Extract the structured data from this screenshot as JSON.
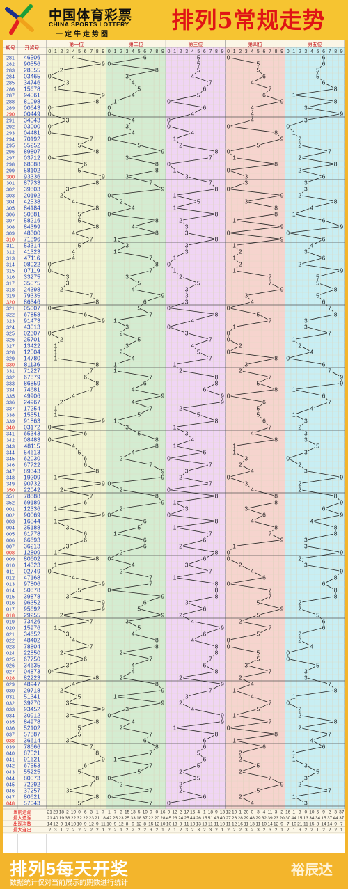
{
  "header": {
    "logo_cn": "中国体育彩票",
    "logo_en": "CHINA SPORTS LOTTERY",
    "slogan": "一定牛走势图",
    "title": "排列5常规走势"
  },
  "table": {
    "col_issue": "期号",
    "col_number": "开奖号",
    "position_labels": [
      "第一位",
      "第二位",
      "第三位",
      "第四位",
      "第五位"
    ],
    "digit_labels": [
      "0",
      "1",
      "2",
      "3",
      "4",
      "5",
      "6",
      "7",
      "8",
      "9"
    ],
    "stat_labels": [
      "当前遗漏",
      "最大遗漏",
      "出现次数",
      "最大连出"
    ],
    "stat_rows": [
      [
        "21",
        "28",
        "18",
        "2",
        "19",
        "0",
        "6",
        "3",
        "1",
        "7",
        "1",
        "7",
        "3",
        "15",
        "13",
        "5",
        "10",
        "0",
        "0",
        "16",
        "0",
        "12",
        "2",
        "17",
        "15",
        "4",
        "1",
        "18",
        "9",
        "13",
        "12",
        "10",
        "1",
        "20",
        "0",
        "3",
        "4",
        "11",
        "3",
        "2",
        "16",
        "1",
        "3",
        "0",
        "10",
        "5",
        "9",
        "2",
        "3",
        "37"
      ],
      [
        "21",
        "40",
        "19",
        "38",
        "22",
        "32",
        "22",
        "23",
        "21",
        "18",
        "42",
        "25",
        "23",
        "25",
        "33",
        "18",
        "37",
        "22",
        "20",
        "28",
        "45",
        "23",
        "24",
        "25",
        "44",
        "26",
        "15",
        "51",
        "43",
        "40",
        "27",
        "26",
        "28",
        "29",
        "48",
        "29",
        "32",
        "39",
        "23",
        "20",
        "30",
        "44",
        "15",
        "13",
        "34",
        "34",
        "15",
        "37",
        "44",
        "37"
      ],
      [
        "14",
        "12",
        "9",
        "14",
        "10",
        "10",
        "9",
        "12",
        "9",
        "11",
        "10",
        "9",
        "12",
        "8",
        "9",
        "12",
        "8",
        "15",
        "12",
        "10",
        "10",
        "13",
        "8",
        "11",
        "10",
        "13",
        "13",
        "11",
        "11",
        "10",
        "11",
        "12",
        "16",
        "11",
        "13",
        "11",
        "10",
        "14",
        "12",
        "9",
        "7",
        "10",
        "21",
        "11",
        "15",
        "8",
        "14",
        "14",
        "9",
        "7"
      ],
      [
        "2",
        "3",
        "1",
        "2",
        "2",
        "2",
        "2",
        "2",
        "2",
        "1",
        "2",
        "2",
        "1",
        "2",
        "2",
        "2",
        "2",
        "3",
        "2",
        "1",
        "2",
        "1",
        "2",
        "3",
        "2",
        "3",
        "2",
        "3",
        "2",
        "1",
        "2",
        "2",
        "2",
        "3",
        "2",
        "3",
        "2",
        "3",
        "2",
        "1",
        "2",
        "1",
        "3",
        "2",
        "2",
        "1",
        "2",
        "2",
        "2",
        "1"
      ]
    ]
  },
  "chart_data": {
    "type": "line",
    "title": "排列5常规走势",
    "x_label": "期号",
    "y_label": "开奖号",
    "series_names": [
      "第一位",
      "第二位",
      "第三位",
      "第四位",
      "第五位"
    ],
    "digit_range": [
      0,
      9
    ],
    "draws": [
      {
        "issue": "281",
        "number": "46506"
      },
      {
        "issue": "282",
        "number": "90556"
      },
      {
        "issue": "283",
        "number": "28555"
      },
      {
        "issue": "284",
        "number": "03465"
      },
      {
        "issue": "285",
        "number": "34746"
      },
      {
        "issue": "286",
        "number": "15678"
      },
      {
        "issue": "287",
        "number": "94561"
      },
      {
        "issue": "288",
        "number": "81098"
      },
      {
        "issue": "289",
        "number": "00643"
      },
      {
        "issue": "290",
        "number": "00449"
      },
      {
        "issue": "291",
        "number": "34043"
      },
      {
        "issue": "292",
        "number": "03000"
      },
      {
        "issue": "293",
        "number": "04481"
      },
      {
        "issue": "294",
        "number": "70192"
      },
      {
        "issue": "295",
        "number": "55252"
      },
      {
        "issue": "296",
        "number": "89807"
      },
      {
        "issue": "297",
        "number": "03712"
      },
      {
        "issue": "298",
        "number": "68088"
      },
      {
        "issue": "299",
        "number": "58102"
      },
      {
        "issue": "300",
        "number": "93336"
      },
      {
        "issue": "301",
        "number": "87733"
      },
      {
        "issue": "302",
        "number": "39803"
      },
      {
        "issue": "303",
        "number": "20192"
      },
      {
        "issue": "304",
        "number": "42538"
      },
      {
        "issue": "305",
        "number": "84184"
      },
      {
        "issue": "306",
        "number": "50881"
      },
      {
        "issue": "307",
        "number": "58216"
      },
      {
        "issue": "308",
        "number": "84399"
      },
      {
        "issue": "309",
        "number": "48300"
      },
      {
        "issue": "310",
        "number": "71896"
      },
      {
        "issue": "311",
        "number": "53314"
      },
      {
        "issue": "312",
        "number": "41323"
      },
      {
        "issue": "313",
        "number": "47116"
      },
      {
        "issue": "314",
        "number": "08022"
      },
      {
        "issue": "315",
        "number": "07119"
      },
      {
        "issue": "316",
        "number": "33275"
      },
      {
        "issue": "317",
        "number": "35575"
      },
      {
        "issue": "318",
        "number": "24398"
      },
      {
        "issue": "319",
        "number": "79335"
      },
      {
        "issue": "320",
        "number": "86346"
      },
      {
        "issue": "321",
        "number": "05007"
      },
      {
        "issue": "322",
        "number": "67858"
      },
      {
        "issue": "323",
        "number": "91473"
      },
      {
        "issue": "324",
        "number": "43013"
      },
      {
        "issue": "325",
        "number": "02307"
      },
      {
        "issue": "326",
        "number": "25701"
      },
      {
        "issue": "327",
        "number": "13422"
      },
      {
        "issue": "328",
        "number": "12504"
      },
      {
        "issue": "329",
        "number": "14780"
      },
      {
        "issue": "330",
        "number": "81136"
      },
      {
        "issue": "331",
        "number": "71227"
      },
      {
        "issue": "332",
        "number": "67879"
      },
      {
        "issue": "333",
        "number": "86859"
      },
      {
        "issue": "334",
        "number": "74681"
      },
      {
        "issue": "335",
        "number": "49906"
      },
      {
        "issue": "336",
        "number": "24967"
      },
      {
        "issue": "337",
        "number": "17254"
      },
      {
        "issue": "338",
        "number": "15551"
      },
      {
        "issue": "339",
        "number": "91863"
      },
      {
        "issue": "340",
        "number": "03172"
      },
      {
        "issue": "341",
        "number": "65343"
      },
      {
        "issue": "342",
        "number": "08483"
      },
      {
        "issue": "343",
        "number": "48115"
      },
      {
        "issue": "344",
        "number": "54613"
      },
      {
        "issue": "345",
        "number": "62030"
      },
      {
        "issue": "346",
        "number": "67722"
      },
      {
        "issue": "347",
        "number": "89343"
      },
      {
        "issue": "348",
        "number": "19209"
      },
      {
        "issue": "349",
        "number": "90732"
      },
      {
        "issue": "350",
        "number": "22042"
      },
      {
        "issue": "351",
        "number": "78888"
      },
      {
        "issue": "352",
        "number": "69189"
      },
      {
        "issue": "001",
        "number": "12336"
      },
      {
        "issue": "002",
        "number": "90069"
      },
      {
        "issue": "003",
        "number": "16844"
      },
      {
        "issue": "004",
        "number": "35188"
      },
      {
        "issue": "005",
        "number": "61778"
      },
      {
        "issue": "006",
        "number": "66693"
      },
      {
        "issue": "007",
        "number": "36213"
      },
      {
        "issue": "008",
        "number": "12809"
      },
      {
        "issue": "009",
        "number": "80602"
      },
      {
        "issue": "010",
        "number": "14323"
      },
      {
        "issue": "011",
        "number": "02749"
      },
      {
        "issue": "012",
        "number": "47168"
      },
      {
        "issue": "013",
        "number": "97806"
      },
      {
        "issue": "014",
        "number": "50878"
      },
      {
        "issue": "015",
        "number": "39878"
      },
      {
        "issue": "016",
        "number": "96352"
      },
      {
        "issue": "017",
        "number": "95692"
      },
      {
        "issue": "018",
        "number": "29255"
      },
      {
        "issue": "019",
        "number": "73426"
      },
      {
        "issue": "020",
        "number": "15976"
      },
      {
        "issue": "021",
        "number": "34652"
      },
      {
        "issue": "022",
        "number": "48402"
      },
      {
        "issue": "023",
        "number": "78804"
      },
      {
        "issue": "024",
        "number": "22850"
      },
      {
        "issue": "025",
        "number": "67750"
      },
      {
        "issue": "026",
        "number": "34635"
      },
      {
        "issue": "027",
        "number": "04873"
      },
      {
        "issue": "028",
        "number": "82223"
      },
      {
        "issue": "029",
        "number": "48947"
      },
      {
        "issue": "030",
        "number": "29718"
      },
      {
        "issue": "031",
        "number": "51341"
      },
      {
        "issue": "032",
        "number": "39270"
      },
      {
        "issue": "033",
        "number": "93452"
      },
      {
        "issue": "034",
        "number": "30912"
      },
      {
        "issue": "035",
        "number": "84978"
      },
      {
        "issue": "036",
        "number": "52102"
      },
      {
        "issue": "037",
        "number": "57887"
      },
      {
        "issue": "038",
        "number": "36614"
      },
      {
        "issue": "039",
        "number": "78666"
      },
      {
        "issue": "040",
        "number": "87521"
      },
      {
        "issue": "041",
        "number": "91621"
      },
      {
        "issue": "042",
        "number": "67553"
      },
      {
        "issue": "043",
        "number": "55225"
      },
      {
        "issue": "044",
        "number": "80573"
      },
      {
        "issue": "045",
        "number": "72292"
      },
      {
        "issue": "046",
        "number": "37257"
      },
      {
        "issue": "047",
        "number": "80621"
      },
      {
        "issue": "048",
        "number": "57043"
      }
    ]
  },
  "footer": {
    "main": "排列5每天开奖",
    "sub": "数据统计仅对当前展示的期数进行统计",
    "brand": "裕辰达"
  },
  "colors": {
    "page_bg": "#f3b52c",
    "title_red": "#e01515",
    "issue_blue": "#1a3fb3",
    "highlight_red": "#e01515",
    "bands": [
      "#f1f3d2",
      "#d4ecd1",
      "#f0d5f4",
      "#f6d4ce",
      "#c8eef3"
    ],
    "line": "#222222"
  }
}
